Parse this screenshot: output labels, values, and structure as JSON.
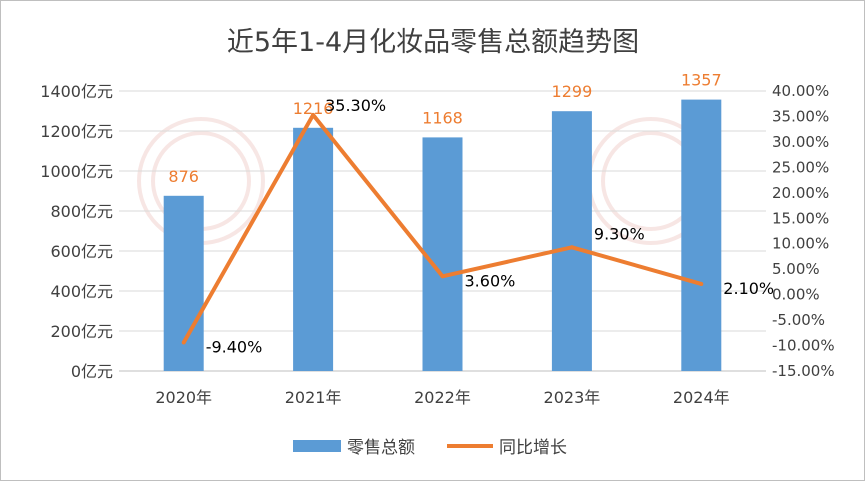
{
  "chart_data": {
    "type": "bar+line",
    "title": "近5年1-4月化妆品零售总额趋势图",
    "categories": [
      "2020年",
      "2021年",
      "2022年",
      "2023年",
      "2024年"
    ],
    "series": [
      {
        "name": "零售总额",
        "type": "bar",
        "axis": "left",
        "values": [
          876,
          1216,
          1168,
          1299,
          1357
        ],
        "labels": [
          "876",
          "1216",
          "1168",
          "1299",
          "1357"
        ],
        "color": "#5b9bd5"
      },
      {
        "name": "同比增长",
        "type": "line",
        "axis": "right",
        "values": [
          -9.4,
          35.3,
          3.6,
          9.3,
          2.1
        ],
        "labels": [
          "-9.40%",
          "35.30%",
          "3.60%",
          "9.30%",
          "2.10%"
        ],
        "color": "#ed7d31"
      }
    ],
    "left_axis": {
      "ylim": [
        0,
        1400
      ],
      "ticks": [
        0,
        200,
        400,
        600,
        800,
        1000,
        1200,
        1400
      ],
      "tick_labels": [
        "0亿元",
        "200亿元",
        "400亿元",
        "600亿元",
        "800亿元",
        "1000亿元",
        "1200亿元",
        "1400亿元"
      ]
    },
    "right_axis": {
      "ylim": [
        -15,
        40
      ],
      "ticks": [
        -15,
        -10,
        -5,
        0,
        5,
        10,
        15,
        20,
        25,
        30,
        35,
        40
      ],
      "tick_labels": [
        "-15.00%",
        "-10.00%",
        "-5.00%",
        "0.00%",
        "5.00%",
        "10.00%",
        "15.00%",
        "20.00%",
        "25.00%",
        "30.00%",
        "35.00%",
        "40.00%"
      ]
    },
    "grid": true,
    "legend_position": "bottom",
    "bar_label_color": "#ed7d31"
  }
}
